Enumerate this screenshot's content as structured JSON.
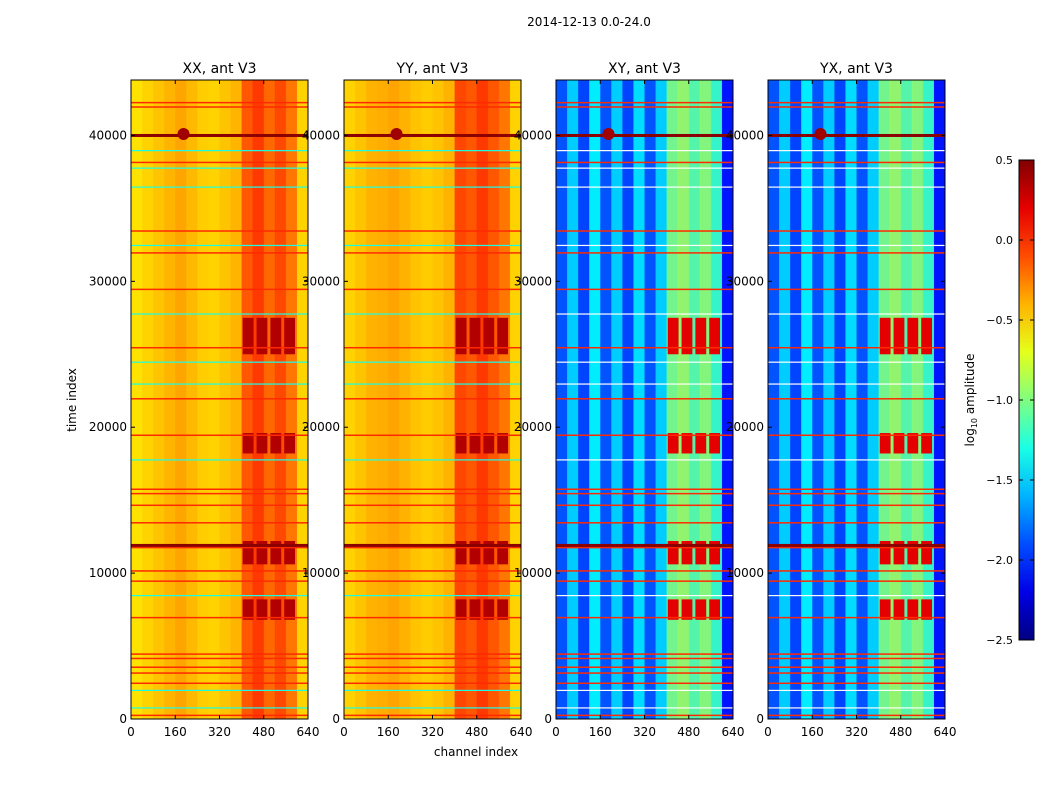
{
  "chart_data": {
    "type": "heatmap",
    "suptitle": "2014-12-13 0.0-24.0",
    "xlabel": "channel index",
    "ylabel": "time index",
    "xlim": [
      0,
      640
    ],
    "ylim": [
      0,
      43800
    ],
    "xticks": [
      0,
      160,
      320,
      480,
      640
    ],
    "yticks": [
      0,
      10000,
      20000,
      30000,
      40000
    ],
    "colorbar": {
      "label_main": "log",
      "label_sub": "10",
      "label_tail": " amplitude",
      "range": [
        -2.5,
        0.5
      ],
      "ticks": [
        0.5,
        0.0,
        -0.5,
        -1.0,
        -1.5,
        -2.0,
        -2.5
      ],
      "tick_labels": [
        "0.5",
        "0.0",
        "−0.5",
        "−1.0",
        "−1.5",
        "−2.0",
        "−2.5"
      ],
      "colormap": "jet"
    },
    "panels": [
      {
        "title": "XX, ant V3",
        "base": -0.45,
        "column_levels": [
          -0.55,
          -0.5,
          -0.45,
          -0.4,
          -0.35,
          -0.42,
          -0.48,
          -0.5,
          -0.45,
          -0.4,
          -0.1,
          0.0,
          -0.15,
          -0.05,
          -0.2,
          -0.5
        ],
        "hot_level": 0.35,
        "stripe_alt": -1.3
      },
      {
        "title": "YY, ant V3",
        "base": -0.4,
        "column_levels": [
          -0.5,
          -0.45,
          -0.4,
          -0.38,
          -0.35,
          -0.4,
          -0.45,
          -0.48,
          -0.45,
          -0.4,
          -0.05,
          -0.1,
          0.0,
          -0.1,
          -0.2,
          -0.5
        ],
        "hot_level": 0.35,
        "stripe_alt": -1.3
      },
      {
        "title": "XY, ant V3",
        "base": -1.7,
        "column_levels": [
          -1.9,
          -1.5,
          -1.95,
          -1.4,
          -1.9,
          -1.5,
          -1.95,
          -1.45,
          -1.9,
          -1.5,
          -1.0,
          -0.9,
          -1.1,
          -0.95,
          -1.2,
          -2.1
        ],
        "hot_level": 0.2,
        "stripe_alt": -0.9
      },
      {
        "title": "YX, ant V3",
        "base": -1.7,
        "column_levels": [
          -1.9,
          -1.5,
          -1.95,
          -1.4,
          -1.9,
          -1.5,
          -1.95,
          -1.45,
          -1.9,
          -1.5,
          -1.0,
          -0.9,
          -1.1,
          -0.95,
          -1.2,
          -2.1
        ],
        "hot_level": 0.2,
        "stripe_alt": -0.9
      }
    ],
    "hot_blocks": [
      [
        6800,
        8200
      ],
      [
        10600,
        12200
      ],
      [
        18200,
        19600
      ],
      [
        25000,
        27500
      ]
    ],
    "hot_channels": [
      400,
      600
    ],
    "red_stripes": [
      300,
      2500,
      3200,
      3600,
      4200,
      4500,
      7000,
      9500,
      10200,
      11800,
      12000,
      13500,
      14700,
      15500,
      15800,
      19500,
      22000,
      25500,
      29500,
      32000,
      33500,
      38200,
      40100,
      42000,
      42300
    ],
    "alt_stripes": [
      800,
      2000,
      8500,
      17800,
      23000,
      24500,
      27800,
      32500,
      36500,
      37800,
      39000
    ]
  }
}
